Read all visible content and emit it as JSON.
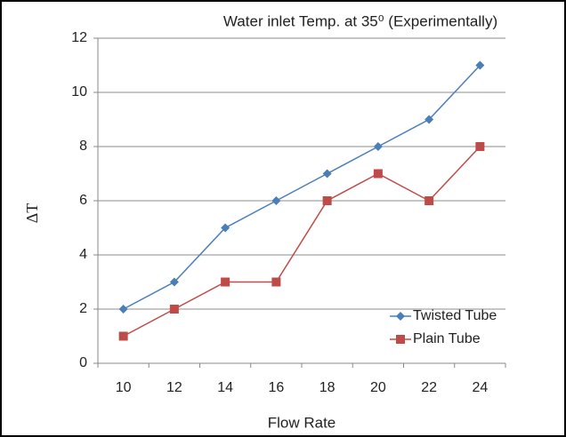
{
  "chart_data": {
    "type": "line",
    "title": "Water inlet Temp. at 35⁰ (Experimentally)",
    "x_label": "Flow Rate",
    "y_label": "ΔT",
    "categories": [
      "10",
      "12",
      "14",
      "16",
      "18",
      "20",
      "22",
      "24"
    ],
    "series": [
      {
        "name": "Twisted Tube",
        "color": "#4a7ebb",
        "marker": "diamond",
        "values": [
          2,
          3,
          5,
          6,
          7,
          8,
          9,
          11
        ]
      },
      {
        "name": "Plain Tube",
        "color": "#be4b48",
        "marker": "square",
        "values": [
          1,
          2,
          3,
          3,
          6,
          7,
          6,
          8
        ]
      }
    ],
    "ylim": [
      0,
      12
    ],
    "yticks": [
      0,
      2,
      4,
      6,
      8,
      10,
      12
    ],
    "grid": true,
    "legend": "lower right"
  }
}
